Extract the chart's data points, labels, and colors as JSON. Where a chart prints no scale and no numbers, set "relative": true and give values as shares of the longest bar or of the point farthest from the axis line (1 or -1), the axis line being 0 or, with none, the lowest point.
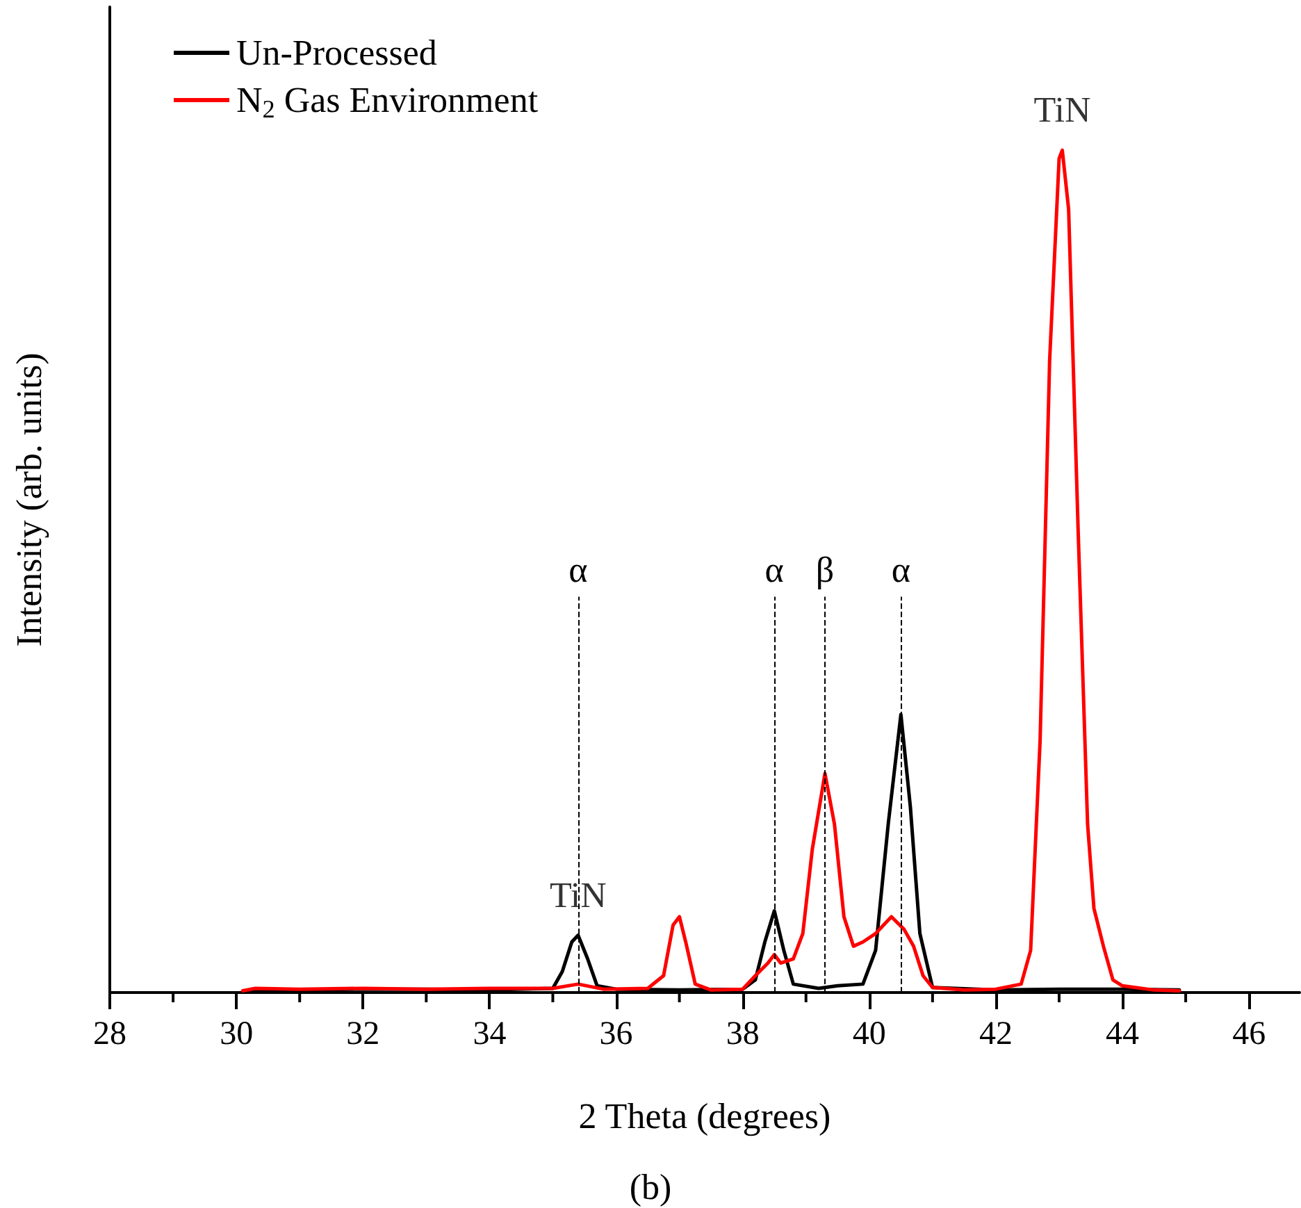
{
  "chart_data": {
    "type": "line",
    "relative": true,
    "xlabel": "2 Theta (degrees)",
    "ylabel": "Intensity (arb. units)",
    "subtitle": "(b)",
    "xlim": [
      28,
      46.8
    ],
    "xticks": [
      28,
      30,
      32,
      34,
      36,
      38,
      40,
      42,
      44,
      46
    ],
    "grid": false,
    "legend": "top left",
    "marker": "none",
    "line_style": "solid",
    "series": [
      {
        "name": "Un-Processed",
        "color": "#000000",
        "x": [
          30.2,
          31,
          32,
          33,
          34,
          35,
          35.15,
          35.3,
          35.4,
          35.55,
          35.7,
          36,
          37,
          38,
          38.2,
          38.35,
          38.5,
          38.65,
          38.8,
          39.2,
          39.5,
          39.9,
          40.1,
          40.3,
          40.5,
          40.65,
          40.8,
          41,
          42,
          43,
          44,
          44.9
        ],
        "values": [
          0.003,
          0.003,
          0.004,
          0.004,
          0.003,
          0.005,
          0.025,
          0.06,
          0.068,
          0.04,
          0.008,
          0.004,
          0.003,
          0.004,
          0.015,
          0.06,
          0.097,
          0.05,
          0.01,
          0.005,
          0.008,
          0.01,
          0.05,
          0.2,
          0.33,
          0.22,
          0.07,
          0.006,
          0.003,
          0.004,
          0.004,
          0.003
        ]
      },
      {
        "name": "N$_{2}$ Gas Environment",
        "color": "#ff0000",
        "x": [
          30.1,
          30.3,
          31,
          32,
          33,
          34,
          35,
          35.4,
          35.8,
          36.5,
          36.75,
          36.9,
          37,
          37.1,
          37.25,
          37.5,
          38,
          38.2,
          38.4,
          38.5,
          38.6,
          38.8,
          38.95,
          39.1,
          39.3,
          39.45,
          39.6,
          39.75,
          39.9,
          40.1,
          40.35,
          40.55,
          40.7,
          40.85,
          41,
          41.5,
          42,
          42.4,
          42.55,
          42.7,
          42.85,
          43,
          43.05,
          43.15,
          43.3,
          43.45,
          43.55,
          43.7,
          43.85,
          44,
          44.5,
          44.9
        ],
        "values": [
          0.002,
          0.005,
          0.004,
          0.005,
          0.004,
          0.005,
          0.005,
          0.01,
          0.004,
          0.005,
          0.02,
          0.08,
          0.09,
          0.06,
          0.01,
          0.003,
          0.004,
          0.02,
          0.035,
          0.045,
          0.035,
          0.04,
          0.07,
          0.17,
          0.26,
          0.2,
          0.09,
          0.055,
          0.06,
          0.07,
          0.09,
          0.075,
          0.055,
          0.02,
          0.006,
          0.003,
          0.004,
          0.01,
          0.05,
          0.3,
          0.75,
          0.99,
          1,
          0.93,
          0.55,
          0.2,
          0.1,
          0.055,
          0.015,
          0.008,
          0.003,
          0.002
        ]
      }
    ],
    "ref_lines": [
      {
        "axis": "x",
        "value": 35.4,
        "label": "α",
        "line_style": "dashed",
        "color": "#000000"
      },
      {
        "axis": "x",
        "value": 38.5,
        "label": "α",
        "line_style": "dashed",
        "color": "#000000"
      },
      {
        "axis": "x",
        "value": 39.3,
        "label": "β",
        "line_style": "dashed",
        "color": "#000000"
      },
      {
        "axis": "x",
        "value": 40.5,
        "label": "α",
        "line_style": "dashed",
        "color": "#000000"
      }
    ],
    "annotations": [
      {
        "text": "TiN",
        "x": 35.4,
        "y": 0.068
      },
      {
        "text": "TiN",
        "x": 43.05,
        "y": 1
      }
    ]
  }
}
